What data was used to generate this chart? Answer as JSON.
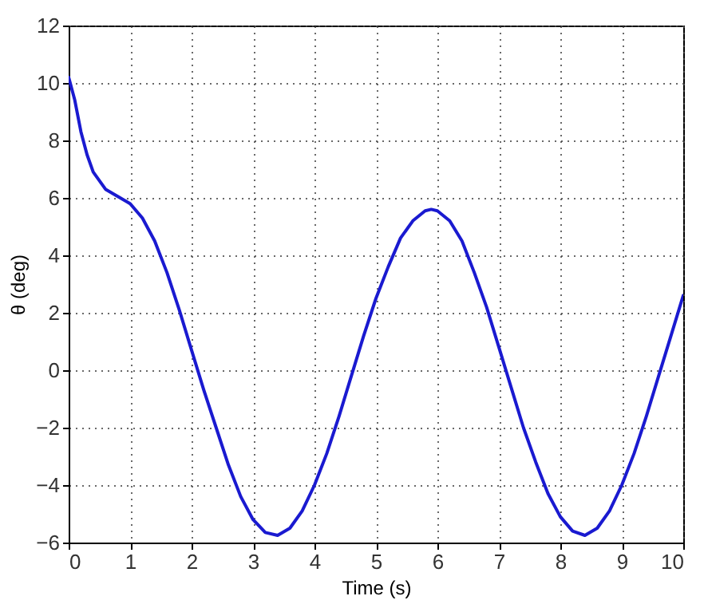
{
  "chart_data": {
    "type": "line",
    "xlabel": "Time (s)",
    "ylabel": "θ (deg)",
    "x": [
      0,
      0.1,
      0.2,
      0.3,
      0.4,
      0.6,
      0.8,
      1.0,
      1.2,
      1.4,
      1.6,
      1.8,
      2.0,
      2.2,
      2.4,
      2.6,
      2.8,
      3.0,
      3.2,
      3.4,
      3.6,
      3.8,
      4.0,
      4.2,
      4.4,
      4.6,
      4.8,
      5.0,
      5.2,
      5.4,
      5.6,
      5.8,
      5.9,
      6.0,
      6.2,
      6.4,
      6.6,
      6.8,
      7.0,
      7.2,
      7.4,
      7.6,
      7.8,
      8.0,
      8.2,
      8.4,
      8.6,
      8.8,
      9.0,
      9.2,
      9.4,
      9.6,
      9.8,
      10.0
    ],
    "series": [
      {
        "color": "#1a1ad0",
        "values": [
          10.2,
          9.4,
          8.3,
          7.5,
          6.9,
          6.3,
          6.05,
          5.8,
          5.3,
          4.5,
          3.4,
          2.1,
          0.7,
          -0.7,
          -2.0,
          -3.3,
          -4.4,
          -5.2,
          -5.65,
          -5.75,
          -5.5,
          -4.9,
          -4.0,
          -2.9,
          -1.6,
          -0.2,
          1.2,
          2.5,
          3.6,
          4.6,
          5.2,
          5.55,
          5.6,
          5.55,
          5.2,
          4.5,
          3.4,
          2.2,
          0.8,
          -0.6,
          -2.0,
          -3.2,
          -4.3,
          -5.1,
          -5.6,
          -5.75,
          -5.5,
          -4.9,
          -4.0,
          -2.9,
          -1.6,
          -0.2,
          1.2,
          2.6
        ]
      }
    ],
    "xlim": [
      0,
      10
    ],
    "xticks": [
      0,
      1,
      2,
      3,
      4,
      5,
      6,
      7,
      8,
      9,
      10
    ],
    "ylim": [
      -6,
      12
    ],
    "yticks": [
      -6,
      -4,
      -2,
      0,
      2,
      4,
      6,
      8,
      10,
      12
    ],
    "grid": true,
    "line_style": "solid",
    "marker": "none",
    "legend": false
  }
}
